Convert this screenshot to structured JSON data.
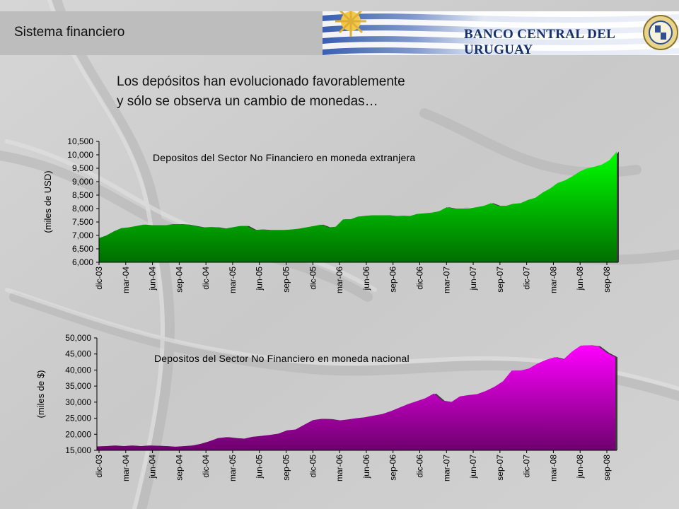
{
  "header": {
    "section_title": "Sistema financiero",
    "bank_name": "BANCO CENTRAL DEL URUGUAY"
  },
  "headline": {
    "line1": "Los depósitos han evolucionado favorablemente",
    "line2": "y sólo se observa un cambio de monedas…"
  },
  "colors": {
    "usd_series": "#00ff00",
    "uyu_series": "#ff00ff",
    "flag_blue": "#3a5fb0",
    "bank_text": "#15306b"
  },
  "chart_data": [
    {
      "type": "area",
      "title": "Depositos del Sector No Financiero en moneda extranjera",
      "ylabel": "(miles de USD)",
      "xlabel": "",
      "ylim": [
        6000,
        10500
      ],
      "yticks": [
        6000,
        6500,
        7000,
        7500,
        8000,
        8500,
        9000,
        9500,
        10000,
        10500
      ],
      "ytick_labels": [
        "6,000",
        "6,500",
        "7,000",
        "7,500",
        "8,000",
        "8,500",
        "9,000",
        "9,500",
        "10,000",
        "10,500"
      ],
      "xtick_labels": [
        "dic-03",
        "mar-04",
        "jun-04",
        "sep-04",
        "dic-04",
        "mar-05",
        "jun-05",
        "sep-05",
        "dic-05",
        "mar-06",
        "jun-06",
        "sep-06",
        "dic-06",
        "mar-07",
        "jun-07",
        "sep-07",
        "dic-07",
        "mar-08",
        "jun-08",
        "sep-08"
      ],
      "grid": false,
      "series": [
        {
          "values": [
            6900,
            7000,
            7150,
            7270,
            7300,
            7350,
            7400,
            7380,
            7380,
            7380,
            7420,
            7420,
            7400,
            7350,
            7300,
            7310,
            7300,
            7250,
            7300,
            7350,
            7350,
            7200,
            7220,
            7200,
            7200,
            7200,
            7220,
            7250,
            7300,
            7350,
            7400,
            7300,
            7320,
            7600,
            7600,
            7700,
            7730,
            7750,
            7750,
            7750,
            7720,
            7730,
            7720,
            7800,
            7820,
            7850,
            7900,
            8050,
            8000,
            8000,
            8000,
            8050,
            8100,
            8200,
            8100,
            8100,
            8180,
            8200,
            8320,
            8400,
            8600,
            8750,
            8950,
            9050,
            9200,
            9380,
            9500,
            9560,
            9640,
            9800,
            10120
          ]
        }
      ]
    },
    {
      "type": "area",
      "title": "Depositos del Sector No Financiero en moneda nacional",
      "ylabel": "(miles de $)",
      "xlabel": "",
      "ylim": [
        15000,
        50000
      ],
      "yticks": [
        15000,
        20000,
        25000,
        30000,
        35000,
        40000,
        45000,
        50000
      ],
      "ytick_labels": [
        "15,000",
        "20,000",
        "25,000",
        "30,000",
        "35,000",
        "40,000",
        "45,000",
        "50,000"
      ],
      "xtick_labels": [
        "dic-03",
        "mar-04",
        "jun-04",
        "sep-04",
        "dic-04",
        "mar-05",
        "jun-05",
        "sep-05",
        "dic-05",
        "mar-06",
        "jun-06",
        "sep-06",
        "dic-06",
        "mar-07",
        "jun-07",
        "sep-07",
        "dic-07",
        "mar-08",
        "jun-08",
        "sep-08"
      ],
      "grid": false,
      "series": [
        {
          "values": [
            16200,
            16300,
            16500,
            16300,
            16500,
            16300,
            16500,
            16400,
            16300,
            16100,
            16300,
            16500,
            17000,
            17800,
            18800,
            19100,
            18800,
            18600,
            19200,
            19500,
            19800,
            20200,
            21200,
            21500,
            23000,
            24400,
            24800,
            24700,
            24300,
            24600,
            25000,
            25300,
            25800,
            26300,
            27200,
            28300,
            29400,
            30300,
            31200,
            32700,
            30400,
            30000,
            31800,
            32200,
            32500,
            33500,
            34800,
            36500,
            39800,
            39800,
            40500,
            42000,
            43200,
            44000,
            43300,
            45800,
            47600,
            47700,
            47400,
            45400,
            44000
          ]
        }
      ]
    }
  ]
}
